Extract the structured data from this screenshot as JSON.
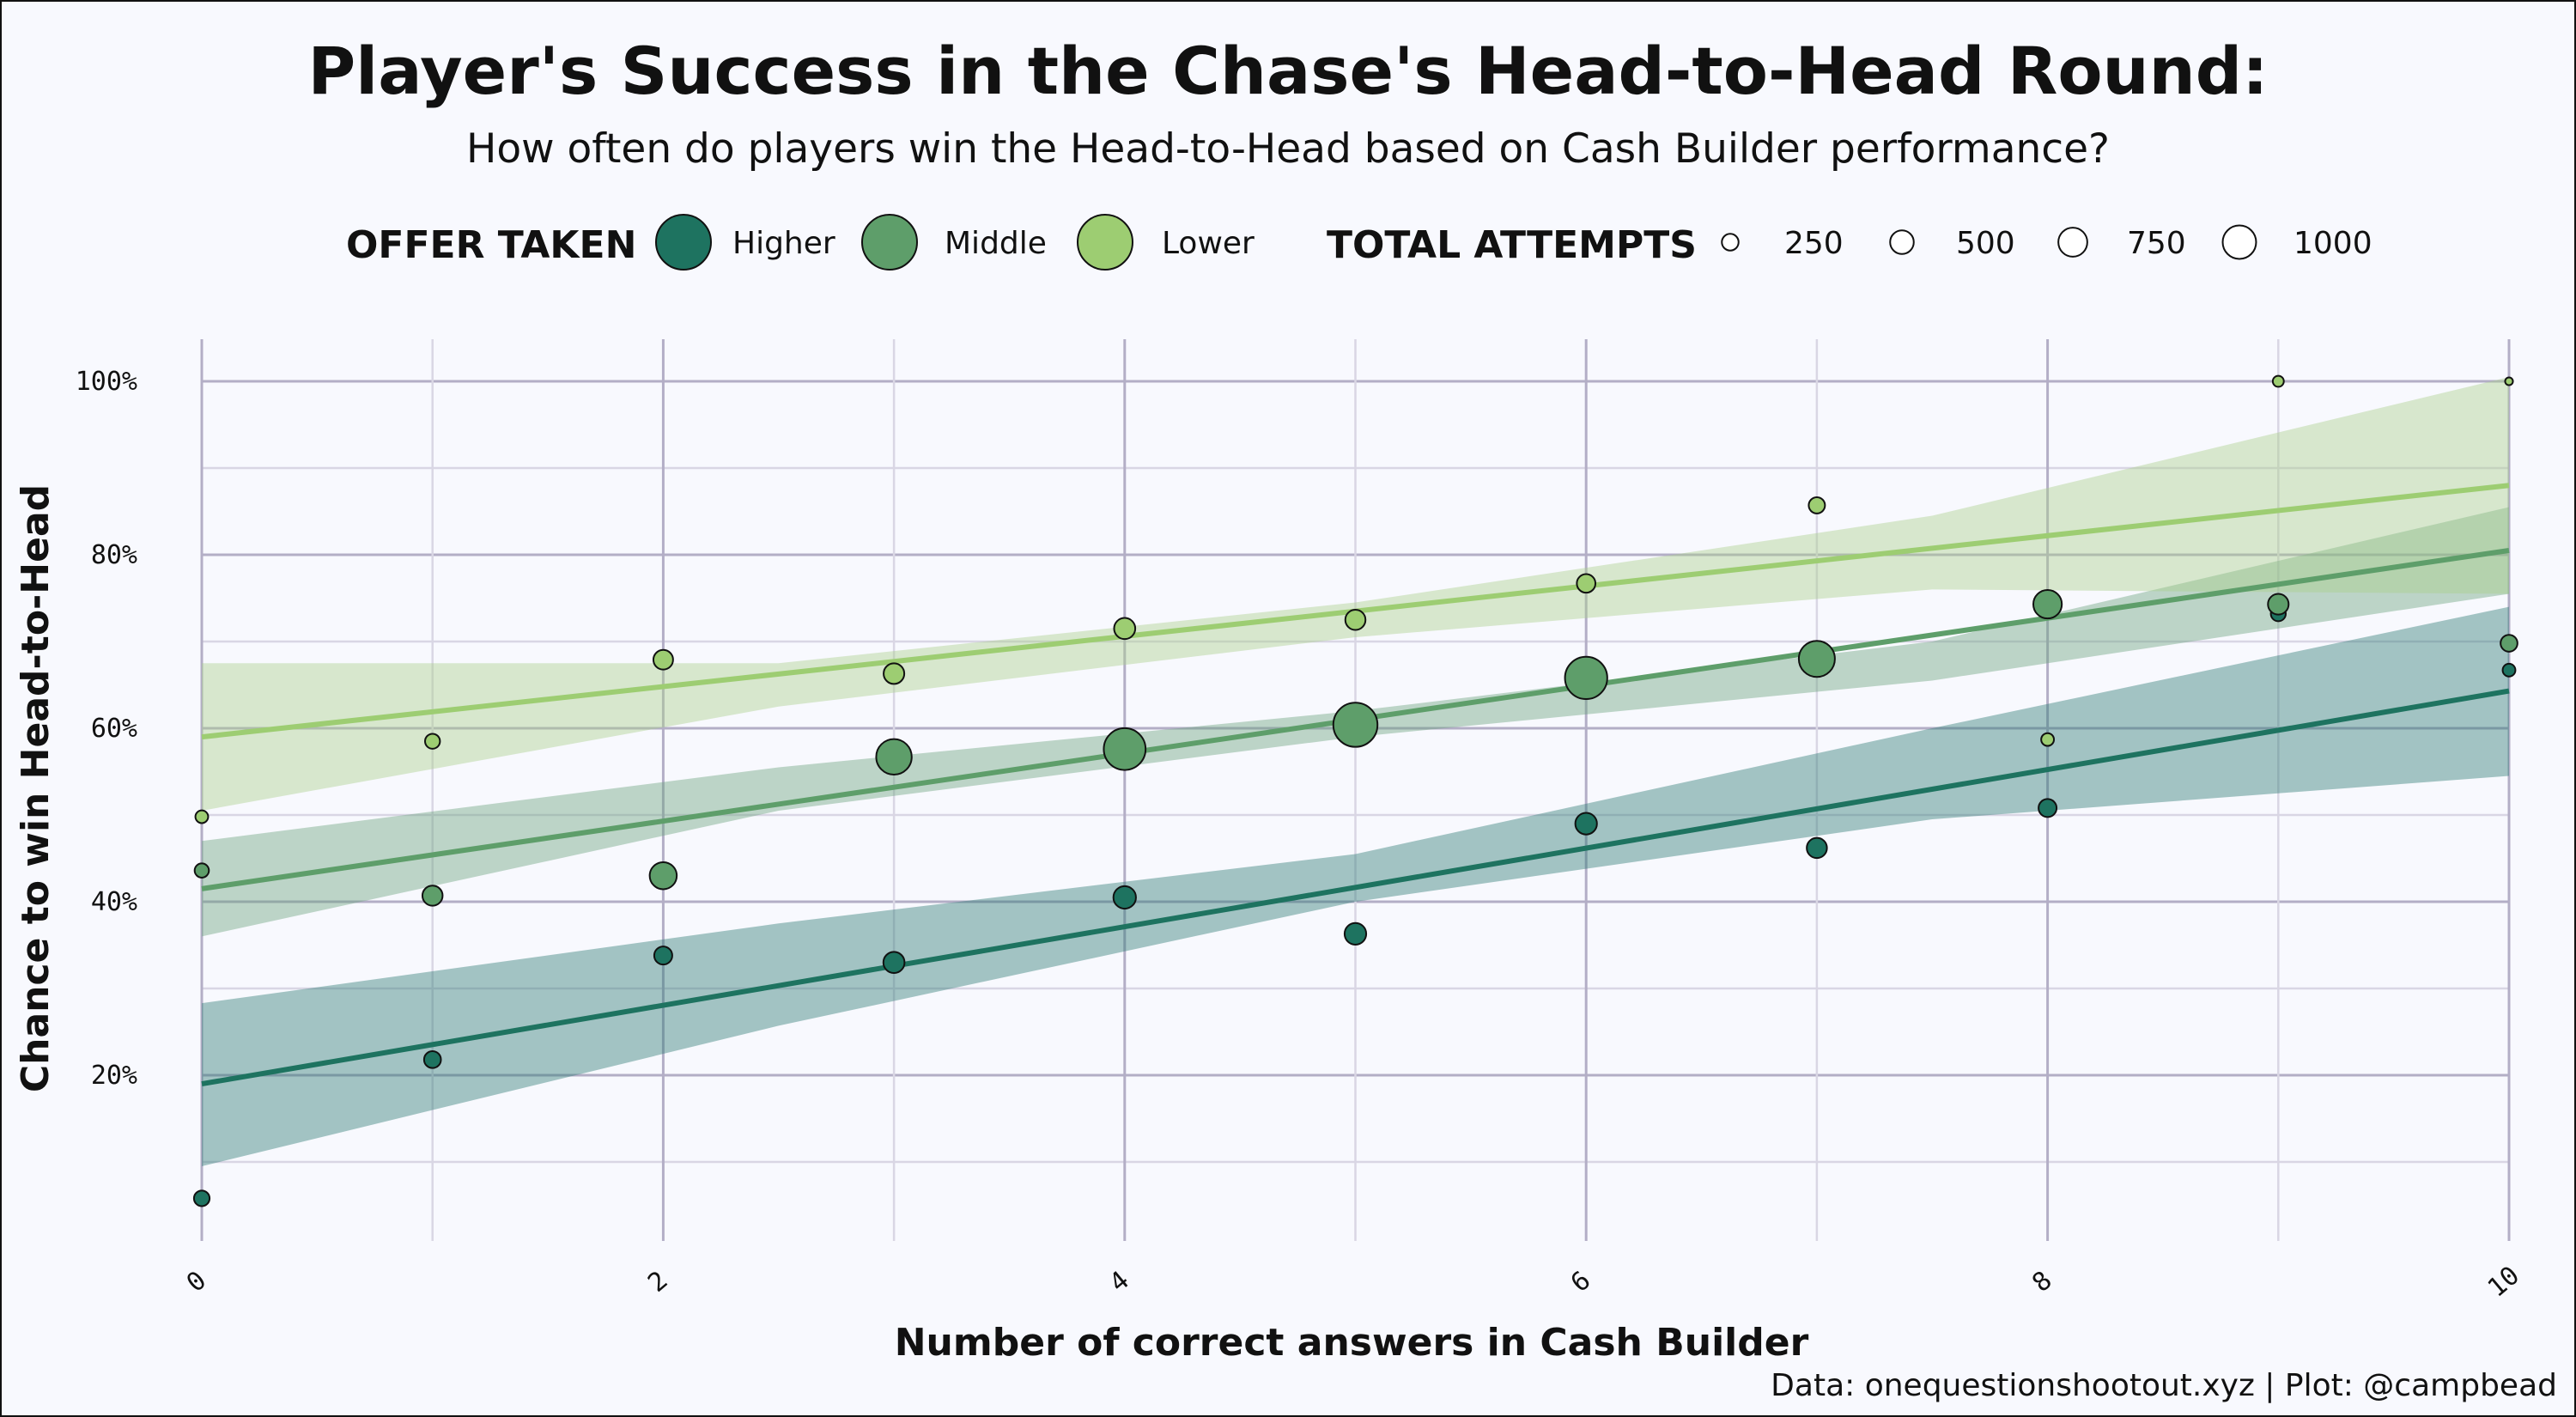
{
  "chart_data": {
    "type": "scatter",
    "title": "Player's Success in the Chase's Head-to-Head Round:",
    "subtitle": "How often do players win the Head-to-Head based on Cash Builder performance?",
    "xlabel": "Number of correct answers in Cash Builder",
    "ylabel": "Chance to win Head-to-Head",
    "caption": "Data: onequestionshootout.xyz | Plot: @campbead",
    "xlim": [
      0,
      10
    ],
    "ylim": [
      0,
      100
    ],
    "xticks": [
      0,
      2,
      4,
      6,
      8,
      10
    ],
    "yticks": [
      20,
      40,
      60,
      80,
      100
    ],
    "ytick_labels": [
      "20%",
      "40%",
      "60%",
      "80%",
      "100%"
    ],
    "grid": true,
    "legend": {
      "position": "top",
      "color_title": "OFFER TAKEN",
      "size_title": "TOTAL ATTEMPTS",
      "size_entries": [
        {
          "label": "250",
          "value": 250
        },
        {
          "label": "500",
          "value": 500
        },
        {
          "label": "750",
          "value": 750
        },
        {
          "label": "1000",
          "value": 1000
        }
      ]
    },
    "series": [
      {
        "name": "Higher",
        "color": "#1e7360",
        "band_color": "#2c7a72",
        "fit": {
          "y0": 19,
          "y10": 64.3
        },
        "band": {
          "lower": [
            9.5,
            25.7,
            40,
            49.5,
            54.5
          ],
          "upper": [
            28.3,
            37.5,
            45.5,
            60,
            74
          ],
          "at_x": [
            0,
            2.5,
            5,
            7.5,
            10
          ]
        },
        "points": [
          {
            "x": 0,
            "y": 5.8,
            "n": 120
          },
          {
            "x": 1,
            "y": 21.8,
            "n": 140
          },
          {
            "x": 2,
            "y": 33.8,
            "n": 160
          },
          {
            "x": 3,
            "y": 33,
            "n": 220
          },
          {
            "x": 4,
            "y": 40.5,
            "n": 250
          },
          {
            "x": 5,
            "y": 36.3,
            "n": 230
          },
          {
            "x": 6,
            "y": 49,
            "n": 230
          },
          {
            "x": 7,
            "y": 46.2,
            "n": 200
          },
          {
            "x": 8,
            "y": 50.8,
            "n": 160
          },
          {
            "x": 9,
            "y": 73.2,
            "n": 110
          },
          {
            "x": 10,
            "y": 66.7,
            "n": 80
          }
        ]
      },
      {
        "name": "Middle",
        "color": "#5e9e6a",
        "band_color": "#6aa37c",
        "fit": {
          "y0": 41.5,
          "y10": 80.5
        },
        "band": {
          "lower": [
            36,
            50.5,
            59,
            65.5,
            75.5
          ],
          "upper": [
            47,
            55.5,
            62,
            70,
            85.5
          ],
          "at_x": [
            0,
            2.5,
            5,
            7.5,
            10
          ]
        },
        "points": [
          {
            "x": 0,
            "y": 43.6,
            "n": 100
          },
          {
            "x": 1,
            "y": 40.7,
            "n": 200
          },
          {
            "x": 2,
            "y": 43,
            "n": 360
          },
          {
            "x": 3,
            "y": 56.7,
            "n": 620
          },
          {
            "x": 4,
            "y": 57.6,
            "n": 860
          },
          {
            "x": 5,
            "y": 60.4,
            "n": 960
          },
          {
            "x": 6,
            "y": 65.8,
            "n": 880
          },
          {
            "x": 7,
            "y": 68,
            "n": 640
          },
          {
            "x": 8,
            "y": 74.3,
            "n": 400
          },
          {
            "x": 9,
            "y": 74.3,
            "n": 210
          },
          {
            "x": 10,
            "y": 69.8,
            "n": 140
          }
        ]
      },
      {
        "name": "Lower",
        "color": "#9dcd72",
        "band_color": "#a9cf8a",
        "fit": {
          "y0": 59,
          "y10": 88
        },
        "band": {
          "lower": [
            50.5,
            62.5,
            70.5,
            76,
            75.5
          ],
          "upper": [
            67.5,
            67.5,
            74.5,
            84.5,
            100.5
          ],
          "at_x": [
            0,
            2.5,
            5,
            7.5,
            10
          ]
        },
        "points": [
          {
            "x": 0,
            "y": 49.8,
            "n": 80
          },
          {
            "x": 1,
            "y": 58.5,
            "n": 110
          },
          {
            "x": 2,
            "y": 67.9,
            "n": 190
          },
          {
            "x": 3,
            "y": 66.3,
            "n": 210
          },
          {
            "x": 4,
            "y": 71.5,
            "n": 220
          },
          {
            "x": 5,
            "y": 72.5,
            "n": 200
          },
          {
            "x": 6,
            "y": 76.7,
            "n": 170
          },
          {
            "x": 7,
            "y": 85.7,
            "n": 130
          },
          {
            "x": 8,
            "y": 58.7,
            "n": 80
          },
          {
            "x": 9,
            "y": 100,
            "n": 60
          },
          {
            "x": 10,
            "y": 100,
            "n": 30
          }
        ]
      }
    ]
  }
}
